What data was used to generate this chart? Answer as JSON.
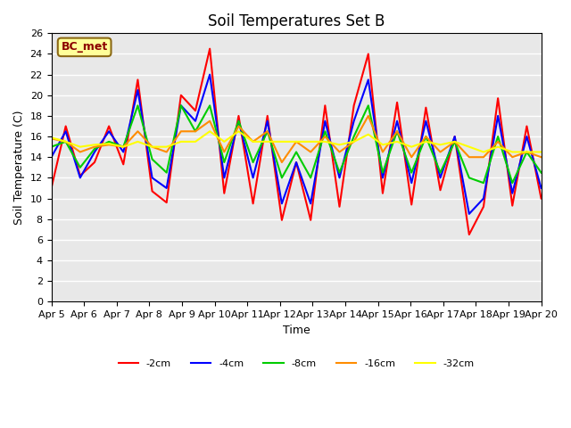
{
  "title": "Soil Temperatures Set B",
  "xlabel": "Time",
  "ylabel": "Soil Temperature (C)",
  "xlim": [
    0,
    15
  ],
  "ylim": [
    0,
    26
  ],
  "yticks": [
    0,
    2,
    4,
    6,
    8,
    10,
    12,
    14,
    16,
    18,
    20,
    22,
    24,
    26
  ],
  "xtick_labels": [
    "Apr 5",
    "Apr 6",
    "Apr 7",
    "Apr 8",
    "Apr 9",
    "Apr 10",
    "Apr 11",
    "Apr 12",
    "Apr 13",
    "Apr 14",
    "Apr 15",
    "Apr 16",
    "Apr 17",
    "Apr 18",
    "Apr 19",
    "Apr 20"
  ],
  "annotation_label": "BC_met",
  "annotation_color": "#8B0000",
  "annotation_bg": "#FFFF99",
  "bg_color": "#E8E8E8",
  "series": [
    {
      "label": "-2cm",
      "color": "#FF0000",
      "lw": 1.5,
      "y": [
        11.0,
        17.0,
        12.2,
        13.5,
        17.0,
        13.3,
        21.5,
        10.7,
        9.6,
        20.0,
        18.5,
        24.5,
        10.5,
        18.0,
        9.5,
        18.0,
        7.9,
        13.5,
        7.9,
        19.0,
        9.2,
        19.0,
        24.0,
        10.5,
        19.3,
        9.4,
        18.8,
        10.8,
        16.0,
        6.5,
        9.2,
        19.7,
        9.3,
        17.0,
        10.0
      ]
    },
    {
      "label": "-4cm",
      "color": "#0000FF",
      "lw": 1.5,
      "y": [
        14.0,
        16.5,
        12.0,
        14.5,
        16.5,
        14.5,
        20.5,
        12.0,
        11.0,
        19.0,
        17.5,
        22.0,
        12.0,
        17.5,
        12.0,
        17.5,
        9.5,
        13.5,
        9.5,
        17.5,
        12.0,
        17.5,
        21.5,
        12.0,
        17.5,
        11.5,
        17.5,
        12.0,
        16.0,
        8.5,
        10.0,
        18.0,
        10.5,
        16.0,
        11.0
      ]
    },
    {
      "label": "-8cm",
      "color": "#00CC00",
      "lw": 1.5,
      "y": [
        15.0,
        15.5,
        13.0,
        14.8,
        15.5,
        15.0,
        19.0,
        13.8,
        12.5,
        19.0,
        16.5,
        19.0,
        13.5,
        17.5,
        13.5,
        16.5,
        12.0,
        14.5,
        12.0,
        16.5,
        12.5,
        16.0,
        19.0,
        12.5,
        16.5,
        12.5,
        16.0,
        12.5,
        15.5,
        12.0,
        11.5,
        16.0,
        11.5,
        14.5,
        12.5
      ]
    },
    {
      "label": "-16cm",
      "color": "#FF8C00",
      "lw": 1.5,
      "y": [
        15.8,
        15.5,
        14.5,
        15.0,
        15.2,
        15.0,
        16.5,
        15.0,
        14.5,
        16.5,
        16.5,
        17.5,
        14.5,
        17.0,
        15.5,
        16.5,
        13.5,
        15.5,
        14.5,
        16.0,
        14.5,
        15.5,
        18.0,
        14.5,
        16.5,
        14.0,
        16.0,
        14.5,
        15.5,
        14.0,
        14.0,
        15.5,
        14.0,
        14.5,
        14.0
      ]
    },
    {
      "label": "-32cm",
      "color": "#FFFF00",
      "lw": 1.5,
      "y": [
        15.9,
        15.5,
        15.0,
        15.2,
        15.3,
        15.0,
        15.5,
        15.0,
        15.0,
        15.5,
        15.5,
        16.5,
        15.5,
        16.5,
        15.5,
        15.5,
        15.5,
        15.5,
        15.5,
        15.5,
        15.2,
        15.5,
        16.2,
        15.2,
        15.5,
        15.0,
        15.5,
        15.2,
        15.5,
        15.0,
        14.5,
        15.0,
        14.5,
        14.5,
        14.5
      ]
    }
  ]
}
